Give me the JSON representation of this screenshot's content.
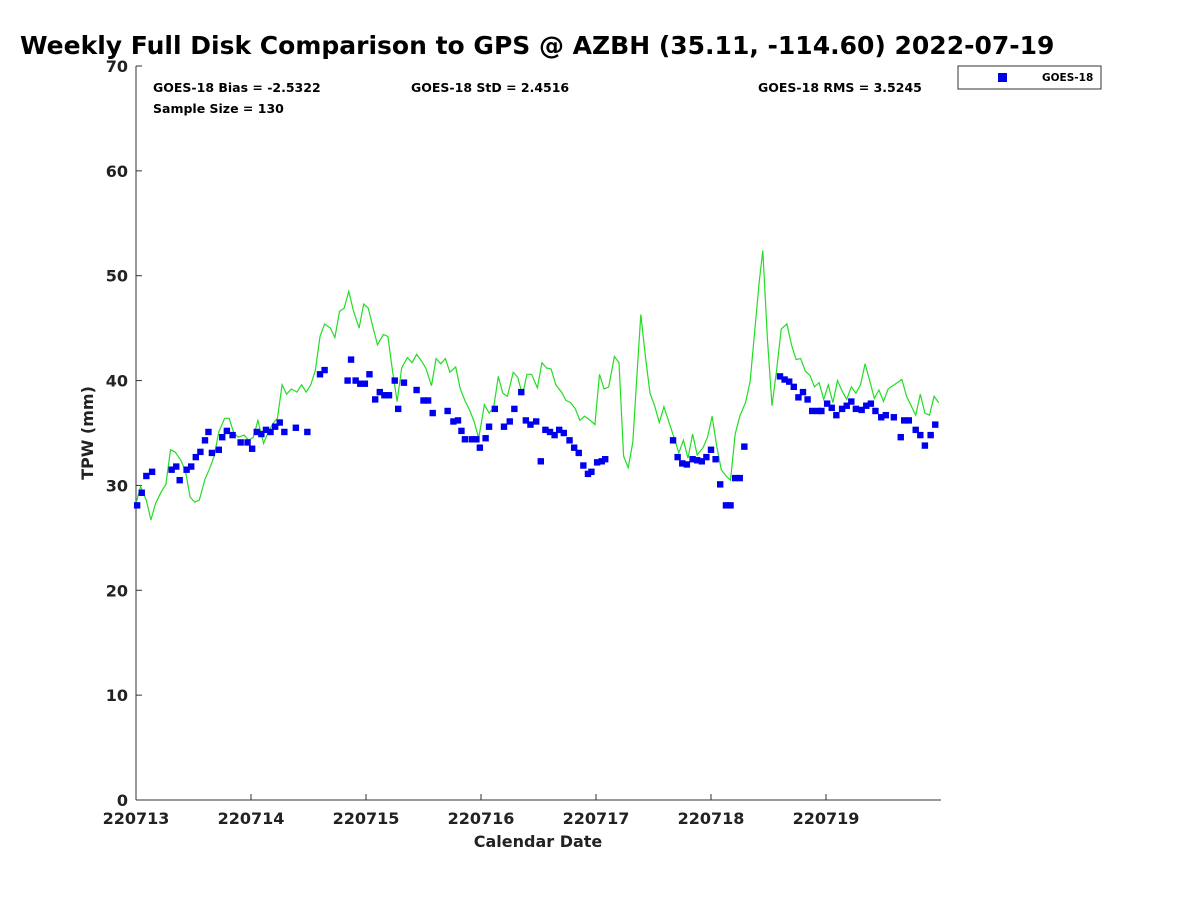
{
  "chart_data": {
    "type": "scatter",
    "title": "Weekly Full Disk Comparison to GPS @ AZBH (35.11, -114.60) 2022-07-19",
    "xlabel": "Calendar Date",
    "ylabel": "TPW (mm)",
    "xlim": [
      0,
      7
    ],
    "ylim": [
      0,
      70
    ],
    "yticks": [
      0,
      10,
      20,
      30,
      40,
      50,
      60,
      70
    ],
    "xticks": [
      {
        "x": 0,
        "label": "220713"
      },
      {
        "x": 1,
        "label": "220714"
      },
      {
        "x": 2,
        "label": "220715"
      },
      {
        "x": 3,
        "label": "220716"
      },
      {
        "x": 4,
        "label": "220717"
      },
      {
        "x": 5,
        "label": "220718"
      },
      {
        "x": 6,
        "label": "220719"
      }
    ],
    "stats": {
      "bias": "GOES-18 Bias = -2.5322",
      "std": "GOES-18 StD = 2.4516",
      "rms": "GOES-18 RMS = 3.5245",
      "sample": "Sample Size = 130"
    },
    "legend": {
      "position": "top-right",
      "entries": [
        {
          "name": "GOES-18",
          "color": "#0000ee",
          "marker": "square"
        }
      ]
    },
    "series": [
      {
        "name": "GOES-18",
        "color": "#0000ee",
        "marker": "square",
        "points": [
          [
            0.01,
            28.1
          ],
          [
            0.05,
            29.3
          ],
          [
            0.09,
            30.9
          ],
          [
            0.14,
            31.3
          ],
          [
            0.31,
            31.5
          ],
          [
            0.35,
            31.8
          ],
          [
            0.38,
            30.5
          ],
          [
            0.44,
            31.5
          ],
          [
            0.48,
            31.8
          ],
          [
            0.52,
            32.7
          ],
          [
            0.56,
            33.2
          ],
          [
            0.6,
            34.3
          ],
          [
            0.63,
            35.1
          ],
          [
            0.66,
            33.1
          ],
          [
            0.72,
            33.4
          ],
          [
            0.75,
            34.6
          ],
          [
            0.79,
            35.2
          ],
          [
            0.84,
            34.8
          ],
          [
            0.91,
            34.1
          ],
          [
            0.97,
            34.1
          ],
          [
            1.01,
            33.5
          ],
          [
            1.05,
            35.1
          ],
          [
            1.09,
            34.9
          ],
          [
            1.13,
            35.3
          ],
          [
            1.17,
            35.1
          ],
          [
            1.21,
            35.6
          ],
          [
            1.25,
            36.0
          ],
          [
            1.29,
            35.1
          ],
          [
            1.39,
            35.5
          ],
          [
            1.49,
            35.1
          ],
          [
            1.6,
            40.6
          ],
          [
            1.64,
            41.0
          ],
          [
            1.84,
            40.0
          ],
          [
            1.87,
            42.0
          ],
          [
            1.91,
            40.0
          ],
          [
            1.95,
            39.7
          ],
          [
            1.99,
            39.7
          ],
          [
            2.03,
            40.6
          ],
          [
            2.08,
            38.2
          ],
          [
            2.12,
            38.9
          ],
          [
            2.16,
            38.6
          ],
          [
            2.2,
            38.6
          ],
          [
            2.25,
            40.0
          ],
          [
            2.28,
            37.3
          ],
          [
            2.33,
            39.8
          ],
          [
            2.44,
            39.1
          ],
          [
            2.5,
            38.1
          ],
          [
            2.54,
            38.1
          ],
          [
            2.58,
            36.9
          ],
          [
            2.71,
            37.1
          ],
          [
            2.76,
            36.1
          ],
          [
            2.8,
            36.2
          ],
          [
            2.83,
            35.2
          ],
          [
            2.86,
            34.4
          ],
          [
            2.92,
            34.4
          ],
          [
            2.96,
            34.4
          ],
          [
            2.99,
            33.6
          ],
          [
            3.04,
            34.5
          ],
          [
            3.07,
            35.6
          ],
          [
            3.12,
            37.3
          ],
          [
            3.2,
            35.6
          ],
          [
            3.25,
            36.1
          ],
          [
            3.29,
            37.3
          ],
          [
            3.35,
            38.9
          ],
          [
            3.39,
            36.2
          ],
          [
            3.43,
            35.8
          ],
          [
            3.48,
            36.1
          ],
          [
            3.52,
            32.3
          ],
          [
            3.56,
            35.3
          ],
          [
            3.6,
            35.1
          ],
          [
            3.64,
            34.8
          ],
          [
            3.68,
            35.3
          ],
          [
            3.72,
            35.0
          ],
          [
            3.77,
            34.3
          ],
          [
            3.81,
            33.6
          ],
          [
            3.85,
            33.1
          ],
          [
            3.89,
            31.9
          ],
          [
            3.93,
            31.1
          ],
          [
            3.96,
            31.3
          ],
          [
            4.01,
            32.2
          ],
          [
            4.05,
            32.3
          ],
          [
            4.08,
            32.5
          ],
          [
            4.67,
            34.3
          ],
          [
            4.71,
            32.7
          ],
          [
            4.75,
            32.1
          ],
          [
            4.79,
            32.0
          ],
          [
            4.84,
            32.5
          ],
          [
            4.88,
            32.4
          ],
          [
            4.92,
            32.3
          ],
          [
            4.96,
            32.7
          ],
          [
            5.0,
            33.4
          ],
          [
            5.04,
            32.5
          ],
          [
            5.08,
            30.1
          ],
          [
            5.13,
            28.1
          ],
          [
            5.17,
            28.1
          ],
          [
            5.21,
            30.7
          ],
          [
            5.25,
            30.7
          ],
          [
            5.29,
            33.7
          ],
          [
            5.6,
            40.4
          ],
          [
            5.64,
            40.1
          ],
          [
            5.68,
            39.9
          ],
          [
            5.72,
            39.4
          ],
          [
            5.76,
            38.4
          ],
          [
            5.8,
            38.9
          ],
          [
            5.84,
            38.2
          ],
          [
            5.88,
            37.1
          ],
          [
            5.93,
            37.1
          ],
          [
            5.96,
            37.1
          ],
          [
            6.01,
            37.8
          ],
          [
            6.05,
            37.4
          ],
          [
            6.09,
            36.7
          ],
          [
            6.14,
            37.3
          ],
          [
            6.18,
            37.6
          ],
          [
            6.22,
            38.0
          ],
          [
            6.26,
            37.3
          ],
          [
            6.31,
            37.2
          ],
          [
            6.35,
            37.6
          ],
          [
            6.39,
            37.8
          ],
          [
            6.43,
            37.1
          ],
          [
            6.48,
            36.5
          ],
          [
            6.52,
            36.7
          ],
          [
            6.59,
            36.5
          ],
          [
            6.65,
            34.6
          ],
          [
            6.68,
            36.2
          ],
          [
            6.72,
            36.2
          ],
          [
            6.78,
            35.3
          ],
          [
            6.82,
            34.8
          ],
          [
            6.86,
            33.8
          ],
          [
            6.91,
            34.8
          ],
          [
            6.95,
            35.8
          ]
        ]
      },
      {
        "name": "GPS",
        "color": "#22dd22",
        "marker": "line",
        "points": [
          [
            0.0,
            28.3
          ],
          [
            0.04,
            29.9
          ],
          [
            0.09,
            28.6
          ],
          [
            0.13,
            26.7
          ],
          [
            0.17,
            28.3
          ],
          [
            0.22,
            29.4
          ],
          [
            0.26,
            30.1
          ],
          [
            0.3,
            33.4
          ],
          [
            0.34,
            33.2
          ],
          [
            0.39,
            32.4
          ],
          [
            0.43,
            31.4
          ],
          [
            0.47,
            28.9
          ],
          [
            0.51,
            28.4
          ],
          [
            0.55,
            28.6
          ],
          [
            0.6,
            30.6
          ],
          [
            0.64,
            31.6
          ],
          [
            0.68,
            32.8
          ],
          [
            0.72,
            35.1
          ],
          [
            0.77,
            36.4
          ],
          [
            0.81,
            36.4
          ],
          [
            0.85,
            35.0
          ],
          [
            0.89,
            34.6
          ],
          [
            0.94,
            34.8
          ],
          [
            0.98,
            34.3
          ],
          [
            1.02,
            34.6
          ],
          [
            1.06,
            36.2
          ],
          [
            1.11,
            34.0
          ],
          [
            1.15,
            35.1
          ],
          [
            1.19,
            35.9
          ],
          [
            1.23,
            36.4
          ],
          [
            1.27,
            39.6
          ],
          [
            1.31,
            38.7
          ],
          [
            1.35,
            39.2
          ],
          [
            1.4,
            38.9
          ],
          [
            1.44,
            39.6
          ],
          [
            1.48,
            38.9
          ],
          [
            1.52,
            39.6
          ],
          [
            1.56,
            41.0
          ],
          [
            1.6,
            44.2
          ],
          [
            1.64,
            45.4
          ],
          [
            1.69,
            45.0
          ],
          [
            1.73,
            44.1
          ],
          [
            1.77,
            46.6
          ],
          [
            1.81,
            46.9
          ],
          [
            1.85,
            48.5
          ],
          [
            1.89,
            46.7
          ],
          [
            1.94,
            45.0
          ],
          [
            1.98,
            47.3
          ],
          [
            2.02,
            46.9
          ],
          [
            2.06,
            45.1
          ],
          [
            2.1,
            43.4
          ],
          [
            2.15,
            44.4
          ],
          [
            2.19,
            44.2
          ],
          [
            2.23,
            41.0
          ],
          [
            2.27,
            38.0
          ],
          [
            2.31,
            41.2
          ],
          [
            2.36,
            42.2
          ],
          [
            2.4,
            41.7
          ],
          [
            2.44,
            42.5
          ],
          [
            2.48,
            41.9
          ],
          [
            2.52,
            41.2
          ],
          [
            2.57,
            39.5
          ],
          [
            2.61,
            42.1
          ],
          [
            2.65,
            41.6
          ],
          [
            2.69,
            42.1
          ],
          [
            2.73,
            40.8
          ],
          [
            2.78,
            41.3
          ],
          [
            2.82,
            39.2
          ],
          [
            2.86,
            38.1
          ],
          [
            2.9,
            37.2
          ],
          [
            2.94,
            36.1
          ],
          [
            2.98,
            34.5
          ],
          [
            3.03,
            37.7
          ],
          [
            3.07,
            36.9
          ],
          [
            3.11,
            37.4
          ],
          [
            3.15,
            40.4
          ],
          [
            3.19,
            38.8
          ],
          [
            3.23,
            38.5
          ],
          [
            3.28,
            40.8
          ],
          [
            3.32,
            40.3
          ],
          [
            3.36,
            38.6
          ],
          [
            3.4,
            40.6
          ],
          [
            3.44,
            40.6
          ],
          [
            3.49,
            39.3
          ],
          [
            3.53,
            41.7
          ],
          [
            3.57,
            41.2
          ],
          [
            3.61,
            41.1
          ],
          [
            3.65,
            39.6
          ],
          [
            3.7,
            38.9
          ],
          [
            3.74,
            38.1
          ],
          [
            3.78,
            37.9
          ],
          [
            3.82,
            37.3
          ],
          [
            3.86,
            36.2
          ],
          [
            3.9,
            36.6
          ],
          [
            3.95,
            36.2
          ],
          [
            3.99,
            35.8
          ],
          [
            4.03,
            40.6
          ],
          [
            4.07,
            39.2
          ],
          [
            4.11,
            39.4
          ],
          [
            4.16,
            42.3
          ],
          [
            4.2,
            41.7
          ],
          [
            4.24,
            32.8
          ],
          [
            4.28,
            31.7
          ],
          [
            4.32,
            34.1
          ],
          [
            4.36,
            41.2
          ],
          [
            4.39,
            46.3
          ],
          [
            4.43,
            42.3
          ],
          [
            4.47,
            38.8
          ],
          [
            4.51,
            37.6
          ],
          [
            4.55,
            36.0
          ],
          [
            4.59,
            37.5
          ],
          [
            4.63,
            36.2
          ],
          [
            4.68,
            34.5
          ],
          [
            4.72,
            33.1
          ],
          [
            4.76,
            34.3
          ],
          [
            4.8,
            32.6
          ],
          [
            4.84,
            34.9
          ],
          [
            4.88,
            32.9
          ],
          [
            4.93,
            33.6
          ],
          [
            4.97,
            34.6
          ],
          [
            5.01,
            36.6
          ],
          [
            5.05,
            33.7
          ],
          [
            5.09,
            31.5
          ],
          [
            5.13,
            30.9
          ],
          [
            5.17,
            30.5
          ],
          [
            5.21,
            34.9
          ],
          [
            5.25,
            36.6
          ],
          [
            5.3,
            37.9
          ],
          [
            5.34,
            39.9
          ],
          [
            5.38,
            44.7
          ],
          [
            5.42,
            49.5
          ],
          [
            5.45,
            52.4
          ],
          [
            5.49,
            44.0
          ],
          [
            5.53,
            37.6
          ],
          [
            5.57,
            40.9
          ],
          [
            5.61,
            44.9
          ],
          [
            5.66,
            45.4
          ],
          [
            5.7,
            43.4
          ],
          [
            5.74,
            42.0
          ],
          [
            5.78,
            42.1
          ],
          [
            5.82,
            40.9
          ],
          [
            5.86,
            40.5
          ],
          [
            5.9,
            39.4
          ],
          [
            5.94,
            39.8
          ],
          [
            5.98,
            38.2
          ],
          [
            6.02,
            39.6
          ],
          [
            6.06,
            37.9
          ],
          [
            6.1,
            40.0
          ],
          [
            6.14,
            39.0
          ],
          [
            6.18,
            38.2
          ],
          [
            6.22,
            39.4
          ],
          [
            6.26,
            38.8
          ],
          [
            6.3,
            39.6
          ],
          [
            6.34,
            41.6
          ],
          [
            6.38,
            40.0
          ],
          [
            6.42,
            38.3
          ],
          [
            6.46,
            39.1
          ],
          [
            6.5,
            38.0
          ],
          [
            6.54,
            39.2
          ],
          [
            6.58,
            39.5
          ],
          [
            6.62,
            39.8
          ],
          [
            6.66,
            40.1
          ],
          [
            6.7,
            38.5
          ],
          [
            6.74,
            37.6
          ],
          [
            6.78,
            36.7
          ],
          [
            6.82,
            38.7
          ],
          [
            6.86,
            36.9
          ],
          [
            6.9,
            36.7
          ],
          [
            6.94,
            38.5
          ],
          [
            6.98,
            37.9
          ]
        ]
      }
    ]
  }
}
